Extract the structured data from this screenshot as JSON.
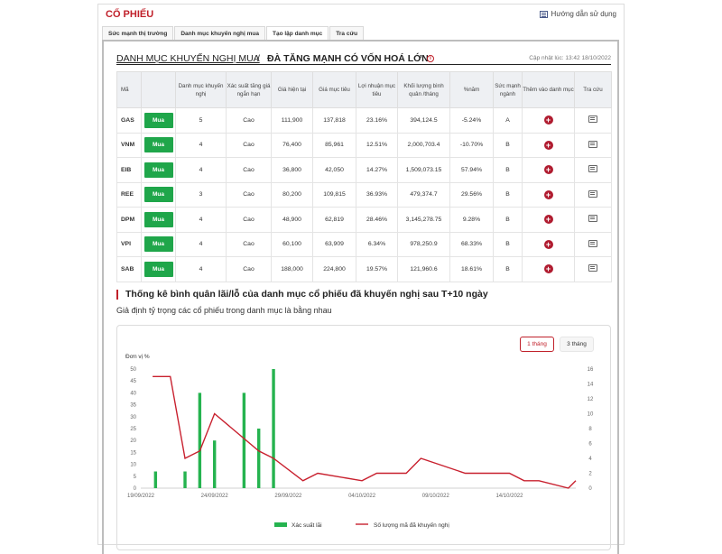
{
  "header": {
    "brand": "CỔ PHIẾU",
    "guide_label": "Hướng dẫn sử dụng"
  },
  "tabs": [
    {
      "label": "Sức mạnh thị trường",
      "active": false
    },
    {
      "label": "Danh mục khuyến nghị mua",
      "active": false
    },
    {
      "label": "Tạo lập danh mục",
      "active": true
    },
    {
      "label": "Tra cứu",
      "active": false
    }
  ],
  "title": {
    "link": "DANH MỤC KHUYẾN NGHỊ MUA",
    "separator": "/",
    "main": "ĐÀ TĂNG MẠNH CÓ VỐN HOÁ LỚN",
    "info_icon": "i",
    "updated": "Cập nhật lúc: 13:42 18/10/2022"
  },
  "table": {
    "columns": [
      "Mã",
      "",
      "Danh mục khuyến nghị",
      "Xác suất tăng giá ngắn hạn",
      "Giá hiện tại",
      "Giá mục tiêu",
      "Lợi nhuận mục tiêu",
      "Khối lượng bình quân /tháng",
      "%năm",
      "Sức mạnh ngành",
      "Thêm vào danh mục",
      "Tra cứu"
    ],
    "rows": [
      {
        "code": "GAS",
        "action": "Mua",
        "count": "5",
        "prob": "Cao",
        "price": "111,900",
        "target": "137,818",
        "profit": "23.16%",
        "volume": "394,124.5",
        "year": "-5.24%",
        "year_color": "red",
        "strength": "A"
      },
      {
        "code": "VNM",
        "action": "Mua",
        "count": "4",
        "prob": "Cao",
        "price": "76,400",
        "target": "85,961",
        "profit": "12.51%",
        "volume": "2,000,703.4",
        "year": "-10.70%",
        "year_color": "red",
        "strength": "B"
      },
      {
        "code": "EIB",
        "action": "Mua",
        "count": "4",
        "prob": "Cao",
        "price": "36,800",
        "target": "42,050",
        "profit": "14.27%",
        "volume": "1,509,073.15",
        "year": "57.94%",
        "year_color": "green",
        "strength": "B"
      },
      {
        "code": "REE",
        "action": "Mua",
        "count": "3",
        "prob": "Cao",
        "price": "80,200",
        "target": "109,815",
        "profit": "36.93%",
        "volume": "479,374.7",
        "year": "29.56%",
        "year_color": "green",
        "strength": "B"
      },
      {
        "code": "DPM",
        "action": "Mua",
        "count": "4",
        "prob": "Cao",
        "price": "48,900",
        "target": "62,819",
        "profit": "28.46%",
        "volume": "3,145,278.75",
        "year": "9.28%",
        "year_color": "green",
        "strength": "B"
      },
      {
        "code": "VPI",
        "action": "Mua",
        "count": "4",
        "prob": "Cao",
        "price": "60,100",
        "target": "63,909",
        "profit": "6.34%",
        "volume": "978,250.9",
        "year": "68.33%",
        "year_color": "green",
        "strength": "B"
      },
      {
        "code": "SAB",
        "action": "Mua",
        "count": "4",
        "prob": "Cao",
        "price": "188,000",
        "target": "224,800",
        "profit": "19.57%",
        "volume": "121,960.6",
        "year": "18.61%",
        "year_color": "green",
        "strength": "B"
      }
    ]
  },
  "stats": {
    "title": "Thống kê bình quân lãi/lỗ của danh mục cổ phiếu đã khuyến nghị sau T+10 ngày",
    "subtitle": "Giả định tỷ trọng các cổ phiếu trong danh mục là bằng nhau",
    "btn_1m": "1 tháng",
    "btn_3m": "3 tháng"
  },
  "colors": {
    "brand_red": "#c0202a",
    "buy_green": "#1fa64a",
    "bar_green": "#25b34f",
    "line_red": "#c8202e"
  },
  "chart_data": {
    "type": "bar+line",
    "ylabel": "Đơn vị %",
    "ylim_left": [
      0,
      50
    ],
    "yticks_left": [
      0,
      5,
      10,
      15,
      20,
      25,
      30,
      35,
      40,
      45,
      50
    ],
    "ylim_right": [
      0,
      16
    ],
    "yticks_right": [
      0,
      2,
      4,
      6,
      8,
      10,
      12,
      14,
      16
    ],
    "x_tick_labels": [
      "19/09/2022",
      "24/09/2022",
      "29/09/2022",
      "04/10/2022",
      "09/10/2022",
      "14/10/2022"
    ],
    "x_tick_days": [
      0,
      5,
      10,
      15,
      20,
      25
    ],
    "x_range_days": [
      0,
      29.5
    ],
    "bars": {
      "name": "Xác suất lãi",
      "points": [
        {
          "day": 1,
          "value": 7
        },
        {
          "day": 3,
          "value": 7
        },
        {
          "day": 4,
          "value": 40
        },
        {
          "day": 5,
          "value": 20
        },
        {
          "day": 7,
          "value": 40
        },
        {
          "day": 8,
          "value": 25
        },
        {
          "day": 9,
          "value": 50
        }
      ]
    },
    "line": {
      "name": "Số lượng mã đã khuyến nghị",
      "points": [
        {
          "day": 0.8,
          "value": 15
        },
        {
          "day": 2,
          "value": 15
        },
        {
          "day": 3,
          "value": 4
        },
        {
          "day": 4,
          "value": 5
        },
        {
          "day": 5,
          "value": 10
        },
        {
          "day": 8,
          "value": 5
        },
        {
          "day": 9,
          "value": 4
        },
        {
          "day": 11,
          "value": 1
        },
        {
          "day": 12,
          "value": 2
        },
        {
          "day": 15,
          "value": 1
        },
        {
          "day": 16,
          "value": 2
        },
        {
          "day": 18,
          "value": 2
        },
        {
          "day": 19,
          "value": 4
        },
        {
          "day": 22,
          "value": 2
        },
        {
          "day": 25,
          "value": 2
        },
        {
          "day": 26,
          "value": 1
        },
        {
          "day": 27,
          "value": 1
        },
        {
          "day": 29,
          "value": 0
        },
        {
          "day": 29.5,
          "value": 1
        }
      ]
    },
    "legend": [
      "Xác suất lãi",
      "Số lượng mã đã khuyến nghị"
    ],
    "legend_position": "bottom"
  }
}
